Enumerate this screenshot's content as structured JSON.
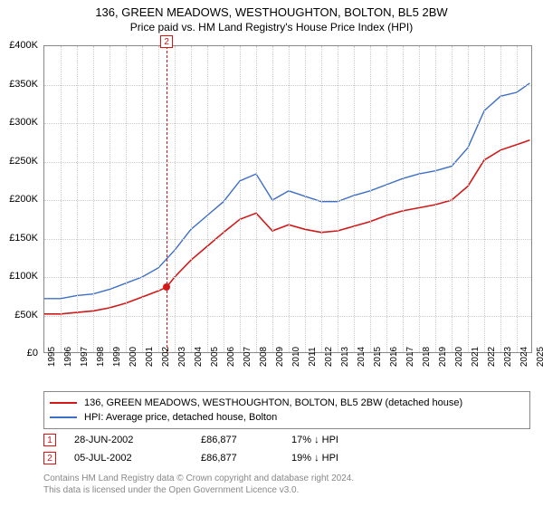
{
  "title": "136, GREEN MEADOWS, WESTHOUGHTON, BOLTON, BL5 2BW",
  "subtitle": "Price paid vs. HM Land Registry's House Price Index (HPI)",
  "chart": {
    "type": "line",
    "background_color": "#ffffff",
    "grid_color": "#cccccc",
    "border_color": "#888888",
    "xlim": [
      1995,
      2025
    ],
    "ylim": [
      0,
      400000
    ],
    "ytick_step": 50000,
    "yticks": [
      0,
      50000,
      100000,
      150000,
      200000,
      250000,
      300000,
      350000,
      400000
    ],
    "ytick_labels": [
      "£0",
      "£50K",
      "£100K",
      "£150K",
      "£200K",
      "£250K",
      "£300K",
      "£350K",
      "£400K"
    ],
    "xticks": [
      1995,
      1996,
      1997,
      1998,
      1999,
      2000,
      2001,
      2002,
      2003,
      2004,
      2005,
      2006,
      2007,
      2008,
      2009,
      2010,
      2011,
      2012,
      2013,
      2014,
      2015,
      2016,
      2017,
      2018,
      2019,
      2020,
      2021,
      2022,
      2023,
      2024,
      2025
    ],
    "series": [
      {
        "id": "property",
        "label": "136, GREEN MEADOWS, WESTHOUGHTON, BOLTON, BL5 2BW (detached house)",
        "color": "#d21919",
        "line_width": 1.6,
        "x": [
          1995,
          1996,
          1997,
          1998,
          1999,
          2000,
          2001,
          2002,
          2002.5,
          2003,
          2004,
          2005,
          2006,
          2007,
          2008,
          2009,
          2010,
          2011,
          2012,
          2013,
          2014,
          2015,
          2016,
          2017,
          2018,
          2019,
          2020,
          2021,
          2022,
          2023,
          2024,
          2024.8
        ],
        "y": [
          52000,
          52000,
          54000,
          56000,
          60000,
          66000,
          74000,
          82000,
          86877,
          100000,
          122000,
          140000,
          158000,
          175000,
          183000,
          160000,
          168000,
          162000,
          158000,
          160000,
          166000,
          172000,
          180000,
          186000,
          190000,
          194000,
          200000,
          218000,
          252000,
          265000,
          272000,
          278000
        ]
      },
      {
        "id": "hpi",
        "label": "HPI: Average price, detached house, Bolton",
        "color": "#3d6fc7",
        "line_width": 1.4,
        "x": [
          1995,
          1996,
          1997,
          1998,
          1999,
          2000,
          2001,
          2002,
          2003,
          2004,
          2005,
          2006,
          2007,
          2008,
          2009,
          2010,
          2011,
          2012,
          2013,
          2014,
          2015,
          2016,
          2017,
          2018,
          2019,
          2020,
          2021,
          2022,
          2023,
          2024,
          2024.8
        ],
        "y": [
          72000,
          72000,
          76000,
          78000,
          84000,
          92000,
          100000,
          112000,
          135000,
          162000,
          180000,
          198000,
          225000,
          234000,
          200000,
          212000,
          205000,
          198000,
          198000,
          206000,
          212000,
          220000,
          228000,
          234000,
          238000,
          244000,
          268000,
          316000,
          335000,
          340000,
          352000
        ]
      }
    ],
    "sale_points": [
      {
        "x": 2002.49,
        "y": 86877,
        "color": "#d21919"
      }
    ],
    "event_lines": [
      {
        "x": 2002.51,
        "label": "2",
        "label_y_offset": -12,
        "color": "#e01010"
      }
    ]
  },
  "legend": {
    "border_color": "#888888"
  },
  "events": [
    {
      "num": "1",
      "date": "28-JUN-2002",
      "price": "£86,877",
      "delta": "17% ↓ HPI"
    },
    {
      "num": "2",
      "date": "05-JUL-2002",
      "price": "£86,877",
      "delta": "19% ↓ HPI"
    }
  ],
  "footer_line1": "Contains HM Land Registry data © Crown copyright and database right 2024.",
  "footer_line2": "This data is licensed under the Open Government Licence v3.0."
}
